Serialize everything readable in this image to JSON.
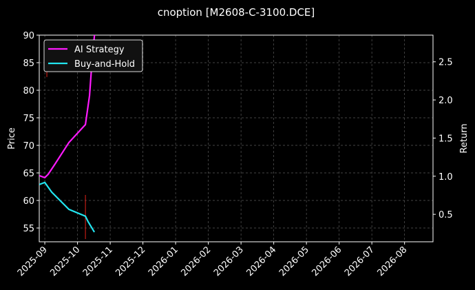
{
  "chart_data": {
    "type": "line",
    "title": "cnoption [M2608-C-3100.DCE]",
    "ylabel": "Price",
    "y2label": "Return",
    "xlim": [
      -0.17,
      11.87
    ],
    "xticks": [
      {
        "value": 0,
        "label": "2025-09"
      },
      {
        "value": 1,
        "label": "2025-10"
      },
      {
        "value": 2,
        "label": "2025-11"
      },
      {
        "value": 3,
        "label": "2025-12"
      },
      {
        "value": 4,
        "label": "2026-01"
      },
      {
        "value": 5,
        "label": "2026-02"
      },
      {
        "value": 6,
        "label": "2026-03"
      },
      {
        "value": 7,
        "label": "2026-04"
      },
      {
        "value": 8,
        "label": "2026-05"
      },
      {
        "value": 9,
        "label": "2026-06"
      },
      {
        "value": 10,
        "label": "2026-07"
      },
      {
        "value": 11,
        "label": "2026-08"
      }
    ],
    "ylim": [
      52.5,
      90
    ],
    "yticks": [
      55,
      60,
      65,
      70,
      75,
      80,
      85,
      90
    ],
    "y2lim": [
      0.14,
      2.85
    ],
    "y2ticks": [
      0.5,
      {
        "value": 1.0,
        "label": "1.0"
      },
      1.5,
      {
        "value": 2.0,
        "label": "2.0"
      },
      2.5
    ],
    "grid": true,
    "legend": "upper-left",
    "series": [
      {
        "name": "AI Strategy",
        "color": "#ff1aff",
        "axis": "y2",
        "x": [
          -0.17,
          0,
          0.105,
          0.316,
          0.737,
          1.242,
          1.368,
          1.453,
          1.52
        ],
        "values": [
          1.008,
          0.981,
          1.026,
          1.162,
          1.442,
          1.677,
          2.057,
          2.563,
          2.853
        ]
      },
      {
        "name": "Buy-and-Hold",
        "color": "#22e5f0",
        "axis": "y2",
        "x": [
          -0.17,
          0,
          0.211,
          0.737,
          1.242,
          1.326,
          1.516
        ],
        "values": [
          0.891,
          0.918,
          0.791,
          0.565,
          0.475,
          0.402,
          0.267
        ]
      }
    ],
    "ranges": {
      "color": "#e8231a",
      "x": [
        0.063,
        1.242
      ],
      "low": [
        82.4,
        53.0
      ],
      "high": [
        84.5,
        61.0
      ]
    }
  }
}
